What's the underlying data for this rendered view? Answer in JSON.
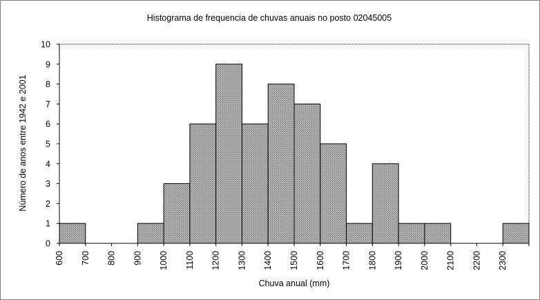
{
  "chart_data": {
    "type": "bar",
    "title": "Histograma de frequencia de chuvas anuais no posto 02045005",
    "xlabel": "Chuva anual (mm)",
    "ylabel": "Número de anos entre 1942 e 2001",
    "categories": [
      "600",
      "700",
      "800",
      "900",
      "1000",
      "1100",
      "1200",
      "1300",
      "1400",
      "1500",
      "1600",
      "1700",
      "1800",
      "1900",
      "2000",
      "2100",
      "2200",
      "2300"
    ],
    "values": [
      1,
      0,
      0,
      1,
      3,
      6,
      9,
      6,
      8,
      7,
      5,
      1,
      4,
      1,
      1,
      0,
      0,
      1
    ],
    "yticks": [
      "0",
      "1",
      "2",
      "3",
      "4",
      "5",
      "6",
      "7",
      "8",
      "9",
      "10"
    ],
    "ylim": [
      0,
      10
    ],
    "grid": false,
    "legend": "none",
    "bar_fill": "#a0a0a0",
    "bar_stroke": "#000000"
  }
}
